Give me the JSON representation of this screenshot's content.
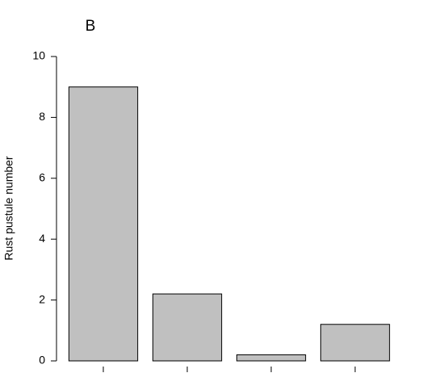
{
  "chart_data": {
    "type": "bar",
    "title": "B",
    "y_label": "Rust pustule number",
    "categories": [
      null,
      null,
      null,
      null
    ],
    "values": [
      9,
      2.2,
      0.2,
      1.2
    ],
    "color": "#c0c0c0",
    "ylim": [
      0,
      10
    ],
    "yticks": [
      0,
      2,
      4,
      6,
      8,
      10
    ],
    "grid": false
  }
}
